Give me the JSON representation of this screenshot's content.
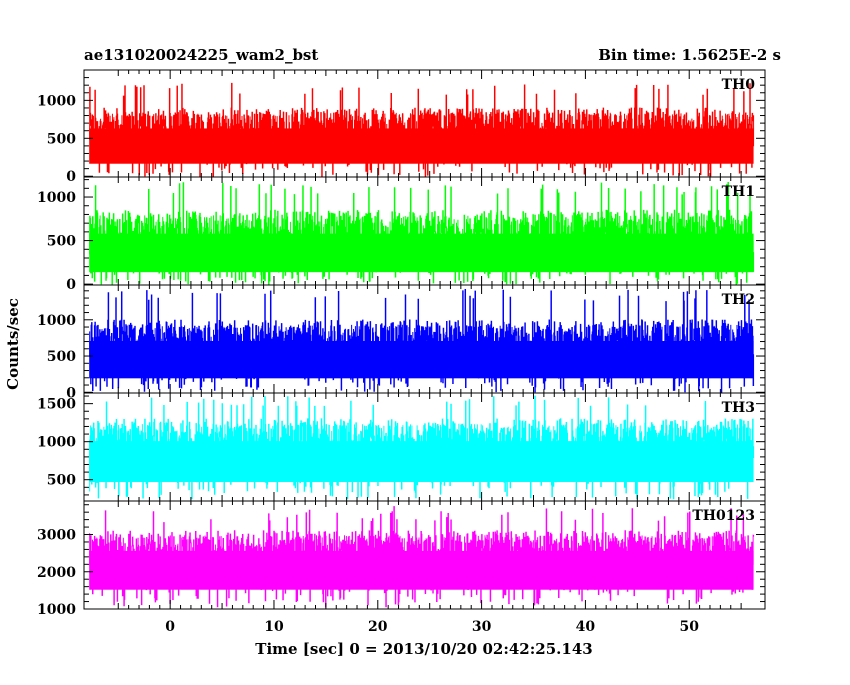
{
  "header": {
    "title": "ae131020024225_wam2_bst",
    "bin_time": "Bin time: 1.5625E-2 s"
  },
  "axes": {
    "ylabel": "Counts/sec",
    "xlabel": "Time [sec] 0 = 2013/10/20 02:42:25.143"
  },
  "chart_data": {
    "type": "line",
    "render": "step",
    "title": "ae131020024225_wam2_bst",
    "xlabel": "Time [sec] 0 = 2013/10/20 02:42:25.143",
    "ylabel": "Counts/sec",
    "xlim": [
      -8.3,
      57.3
    ],
    "x_range_data": [
      -7.8,
      56.2
    ],
    "bin_time": 0.015625,
    "x_ticks": [
      0,
      10,
      20,
      30,
      40,
      50
    ],
    "x_tick_labels": [
      "0",
      "10",
      "20",
      "30",
      "40",
      "50"
    ],
    "panels": [
      {
        "label": "TH0",
        "color": "#ff0000",
        "ylim": [
          -10,
          1400
        ],
        "y_ticks": [
          0,
          500,
          1000
        ],
        "y_tick_labels": [
          "0",
          "500",
          "1000"
        ],
        "y_minor_step": 100,
        "data_min": 0,
        "data_mean": 300,
        "data_noise": 600,
        "data_max_typical": 1050,
        "data_max": 1230
      },
      {
        "label": "TH1",
        "color": "#00ff00",
        "ylim": [
          -10,
          1230
        ],
        "y_ticks": [
          0,
          500,
          1000
        ],
        "y_tick_labels": [
          "0",
          "500",
          "1000"
        ],
        "y_minor_step": 100,
        "data_min": 0,
        "data_mean": 250,
        "data_noise": 600,
        "data_max_typical": 1020,
        "data_max": 1170
      },
      {
        "label": "TH2",
        "color": "#0000ff",
        "ylim": [
          -10,
          1480
        ],
        "y_ticks": [
          0,
          500,
          1000
        ],
        "y_tick_labels": [
          "0",
          "500",
          "1000"
        ],
        "y_minor_step": 100,
        "data_min": 0,
        "data_mean": 350,
        "data_noise": 650,
        "data_max_typical": 1250,
        "data_max": 1420
      },
      {
        "label": "TH3",
        "color": "#00ffff",
        "ylim": [
          220,
          1640
        ],
        "y_ticks": [
          500,
          1000,
          1500
        ],
        "y_tick_labels": [
          "500",
          "1000",
          "1500"
        ],
        "y_minor_step": 100,
        "data_min": 250,
        "data_mean": 650,
        "data_noise": 650,
        "data_max_typical": 1450,
        "data_max": 1600
      },
      {
        "label": "TH0123",
        "color": "#ff00ff",
        "ylim": [
          1000,
          3900
        ],
        "y_ticks": [
          1000,
          2000,
          3000
        ],
        "y_tick_labels": [
          "1000",
          "2000",
          "3000"
        ],
        "y_minor_step": 200,
        "data_min": 1050,
        "data_mean": 1900,
        "data_noise": 1200,
        "data_max_typical": 3300,
        "data_max": 3750
      }
    ],
    "grid": false,
    "legend": "none"
  }
}
